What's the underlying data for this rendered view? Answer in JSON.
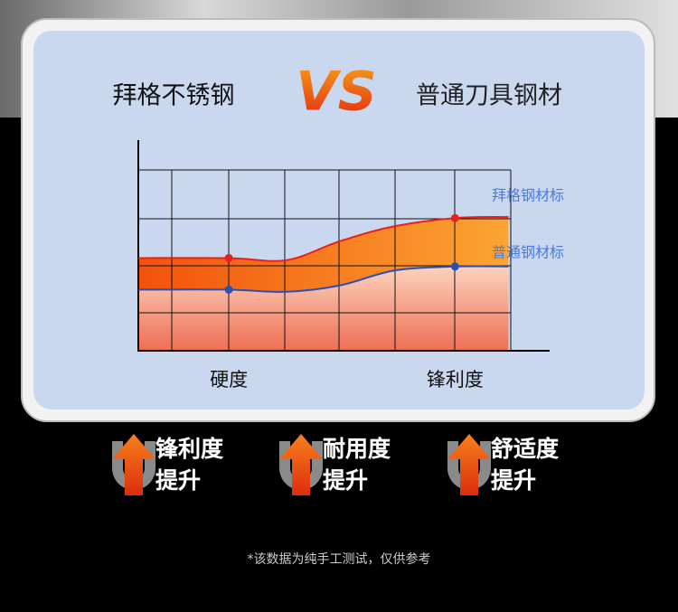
{
  "header": {
    "left": "拜格不锈钢",
    "vs": "VS",
    "right": "普通刀具钢材"
  },
  "chart_data": {
    "type": "area",
    "x": [
      0,
      22,
      36,
      49,
      62,
      77,
      90
    ],
    "series": [
      {
        "name": "拜格钢材标",
        "color": "#e8201f",
        "values": [
          44,
          44,
          43,
          52,
          59,
          63,
          63.5
        ]
      },
      {
        "name": "普通钢材标",
        "color": "#2b4fb5",
        "values": [
          29,
          29,
          28,
          31,
          38,
          40,
          40
        ]
      }
    ],
    "xlim": [
      0,
      100
    ],
    "ylim": [
      0,
      100
    ],
    "xticks": [
      {
        "value": 22,
        "label": "硬度"
      },
      {
        "value": 77,
        "label": "锋利度"
      }
    ]
  },
  "badges": [
    {
      "line1": "锋利度",
      "line2": "提升"
    },
    {
      "line1": "耐用度",
      "line2": "提升"
    },
    {
      "line1": "舒适度",
      "line2": "提升"
    }
  ],
  "footnote": "*该数据为纯手工测试，仅供参考"
}
